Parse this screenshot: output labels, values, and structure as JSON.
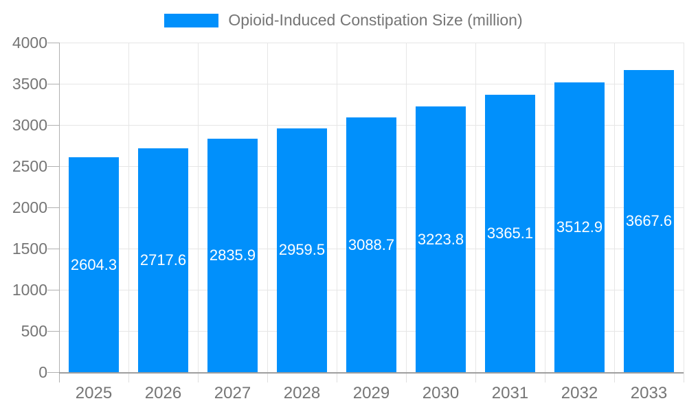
{
  "legend": {
    "label": "Opioid-Induced Constipation Size (million)"
  },
  "chart_data": {
    "type": "bar",
    "title": "Opioid-Induced Constipation Size (million)",
    "categories": [
      "2025",
      "2026",
      "2027",
      "2028",
      "2029",
      "2030",
      "2031",
      "2032",
      "2033"
    ],
    "values": [
      2604.3,
      2717.6,
      2835.9,
      2959.5,
      3088.7,
      3223.8,
      3365.1,
      3512.9,
      3667.6
    ],
    "value_labels": [
      "2604.3",
      "2717.6",
      "2835.9",
      "2959.5",
      "3088.7",
      "3223.8",
      "3365.1",
      "3512.9",
      "3667.6"
    ],
    "xlabel": "",
    "ylabel": "",
    "ylim": [
      0,
      4000
    ],
    "yticks": [
      0,
      500,
      1000,
      1500,
      2000,
      2500,
      3000,
      3500,
      4000
    ],
    "grid": true,
    "legend_position": "top-center",
    "colors": {
      "bar": "#0190FB",
      "value_label": "#FFFFFF",
      "axis_text": "#757575",
      "gridline": "#E6E6E6",
      "axis_line": "#B0B0B0",
      "baseline": "#9E9E9E",
      "minor_tick": "#E0E0E0"
    }
  }
}
